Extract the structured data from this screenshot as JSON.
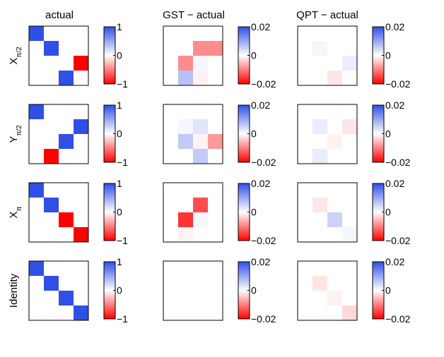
{
  "chart_data": {
    "type": "heatmap",
    "column_titles": [
      "actual",
      "GST − actual",
      "QPT − actual"
    ],
    "row_labels": [
      {
        "base": "X",
        "sub": "π/2",
        "raw": "X_{π/2}"
      },
      {
        "base": "Y",
        "sub": "π/2",
        "raw": "Y_{π/2}"
      },
      {
        "base": "X",
        "sub": "π",
        "raw": "X_{π}"
      },
      {
        "base": "Identity",
        "sub": "",
        "raw": "Identity"
      }
    ],
    "colormap": {
      "positive": "#2f4fe6",
      "zero": "#ffffff",
      "negative": "#ff0000"
    },
    "colorbars": [
      {
        "range": [
          -1,
          1
        ],
        "tick_labels": [
          "1",
          "0",
          "−1"
        ]
      },
      {
        "range": [
          -0.02,
          0.02
        ],
        "tick_labels": [
          "0.02",
          "0",
          "−0.02"
        ]
      },
      {
        "range": [
          -0.02,
          0.02
        ],
        "tick_labels": [
          "0.02",
          "0",
          "−0.02"
        ]
      }
    ],
    "matrices": [
      [
        [
          [
            1,
            0,
            0,
            0
          ],
          [
            0,
            1,
            0,
            0
          ],
          [
            0,
            0,
            0,
            -1
          ],
          [
            0,
            0,
            1,
            0
          ]
        ],
        [
          [
            0,
            0,
            0,
            0
          ],
          [
            0,
            0,
            -0.009,
            -0.009
          ],
          [
            0,
            -0.009,
            0.001,
            0
          ],
          [
            0,
            0.007,
            -0.001,
            0
          ]
        ],
        [
          [
            0,
            0,
            0,
            0
          ],
          [
            0,
            0.001,
            0,
            0
          ],
          [
            0,
            0,
            0,
            0.002
          ],
          [
            0,
            0,
            -0.002,
            0
          ]
        ]
      ],
      [
        [
          [
            1,
            0,
            0,
            0
          ],
          [
            0,
            0,
            0,
            1
          ],
          [
            0,
            0,
            1,
            0
          ],
          [
            0,
            -1,
            0,
            0
          ]
        ],
        [
          [
            0,
            0,
            0,
            0
          ],
          [
            0,
            0.001,
            0.003,
            0
          ],
          [
            0,
            0.006,
            -0.001,
            -0.008
          ],
          [
            0,
            0,
            0.006,
            0
          ]
        ],
        [
          [
            0,
            0,
            0,
            0
          ],
          [
            0,
            0.002,
            0,
            -0.002
          ],
          [
            0,
            0,
            -0.001,
            0
          ],
          [
            0,
            0.002,
            0,
            0
          ]
        ]
      ],
      [
        [
          [
            1,
            0,
            0,
            0
          ],
          [
            0,
            1,
            0,
            0
          ],
          [
            0,
            0,
            -1,
            0
          ],
          [
            0,
            0,
            0,
            -1
          ]
        ],
        [
          [
            0,
            0,
            0,
            0
          ],
          [
            0,
            0,
            -0.014,
            0
          ],
          [
            0,
            -0.016,
            0.001,
            0
          ],
          [
            0,
            -0.001,
            0,
            0
          ]
        ],
        [
          [
            0,
            0,
            0,
            0
          ],
          [
            0,
            -0.002,
            0,
            0
          ],
          [
            0,
            0,
            0.005,
            0
          ],
          [
            0,
            0,
            0,
            0.001
          ]
        ]
      ],
      [
        [
          [
            1,
            0,
            0,
            0
          ],
          [
            0,
            1,
            0,
            0
          ],
          [
            0,
            0,
            1,
            0
          ],
          [
            0,
            0,
            0,
            1
          ]
        ],
        [
          [
            0,
            0,
            0,
            0
          ],
          [
            0,
            0,
            0,
            0
          ],
          [
            0,
            0,
            0,
            0
          ],
          [
            0,
            0,
            0,
            0
          ]
        ],
        [
          [
            0,
            0,
            0,
            0
          ],
          [
            0,
            -0.002,
            0,
            0
          ],
          [
            0,
            0,
            -0.001,
            0
          ],
          [
            0,
            0,
            0,
            -0.003
          ]
        ]
      ]
    ]
  }
}
